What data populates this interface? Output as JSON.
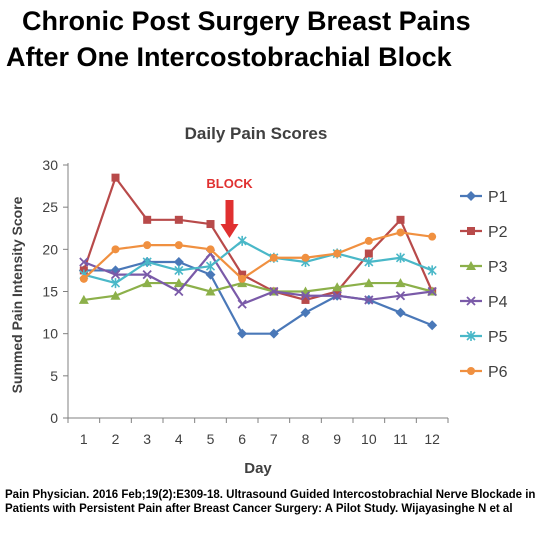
{
  "headline": {
    "line1": "Chronic Post Surgery Breast Pains",
    "line2": "After One Intercostobrachial Block"
  },
  "citation": "Pain Physician. 2016 Feb;19(2):E309-18. Ultrasound Guided Intercostobrachial Nerve Blockade in Patients with Persistent Pain after Breast Cancer Surgery: A Pilot Study. Wijayasinghe N et al",
  "chart_data": {
    "type": "line",
    "title": "Daily Pain Scores",
    "xlabel": "Day",
    "ylabel": "Summed Pain Intensity Score",
    "x": [
      1,
      2,
      3,
      4,
      5,
      6,
      7,
      8,
      9,
      10,
      11,
      12
    ],
    "ylim": [
      0,
      30
    ],
    "yticks": [
      0,
      5,
      10,
      15,
      20,
      25,
      30
    ],
    "grid": false,
    "legend_position": "right",
    "annotation": {
      "text": "BLOCK",
      "x": 5.6,
      "color": "#e03030"
    },
    "series": [
      {
        "name": "P1",
        "color": "#4a78b8",
        "marker": "diamond",
        "values": [
          17.5,
          17.5,
          18.5,
          18.5,
          17,
          10,
          10,
          12.5,
          14.5,
          14,
          12.5,
          11
        ]
      },
      {
        "name": "P2",
        "color": "#b84a4a",
        "marker": "square",
        "values": [
          17.5,
          28.5,
          23.5,
          23.5,
          23,
          17,
          15,
          14,
          15,
          19.5,
          23.5,
          15
        ]
      },
      {
        "name": "P3",
        "color": "#8cb04a",
        "marker": "triangle",
        "values": [
          14,
          14.5,
          16,
          16,
          15,
          16,
          15,
          15,
          15.5,
          16,
          16,
          15
        ]
      },
      {
        "name": "P4",
        "color": "#7a5aa8",
        "marker": "x",
        "values": [
          18.5,
          17,
          17,
          15,
          19.5,
          13.5,
          15,
          14.5,
          14.5,
          14,
          14.5,
          15
        ]
      },
      {
        "name": "P5",
        "color": "#4ab8c8",
        "marker": "star",
        "values": [
          17,
          16,
          18.5,
          17.5,
          18,
          21,
          19,
          18.5,
          19.5,
          18.5,
          19,
          17.5
        ]
      },
      {
        "name": "P6",
        "color": "#f09040",
        "marker": "circle",
        "values": [
          16.5,
          20,
          20.5,
          20.5,
          20,
          16.5,
          19,
          19,
          19.5,
          21,
          22,
          21.5
        ]
      }
    ]
  }
}
